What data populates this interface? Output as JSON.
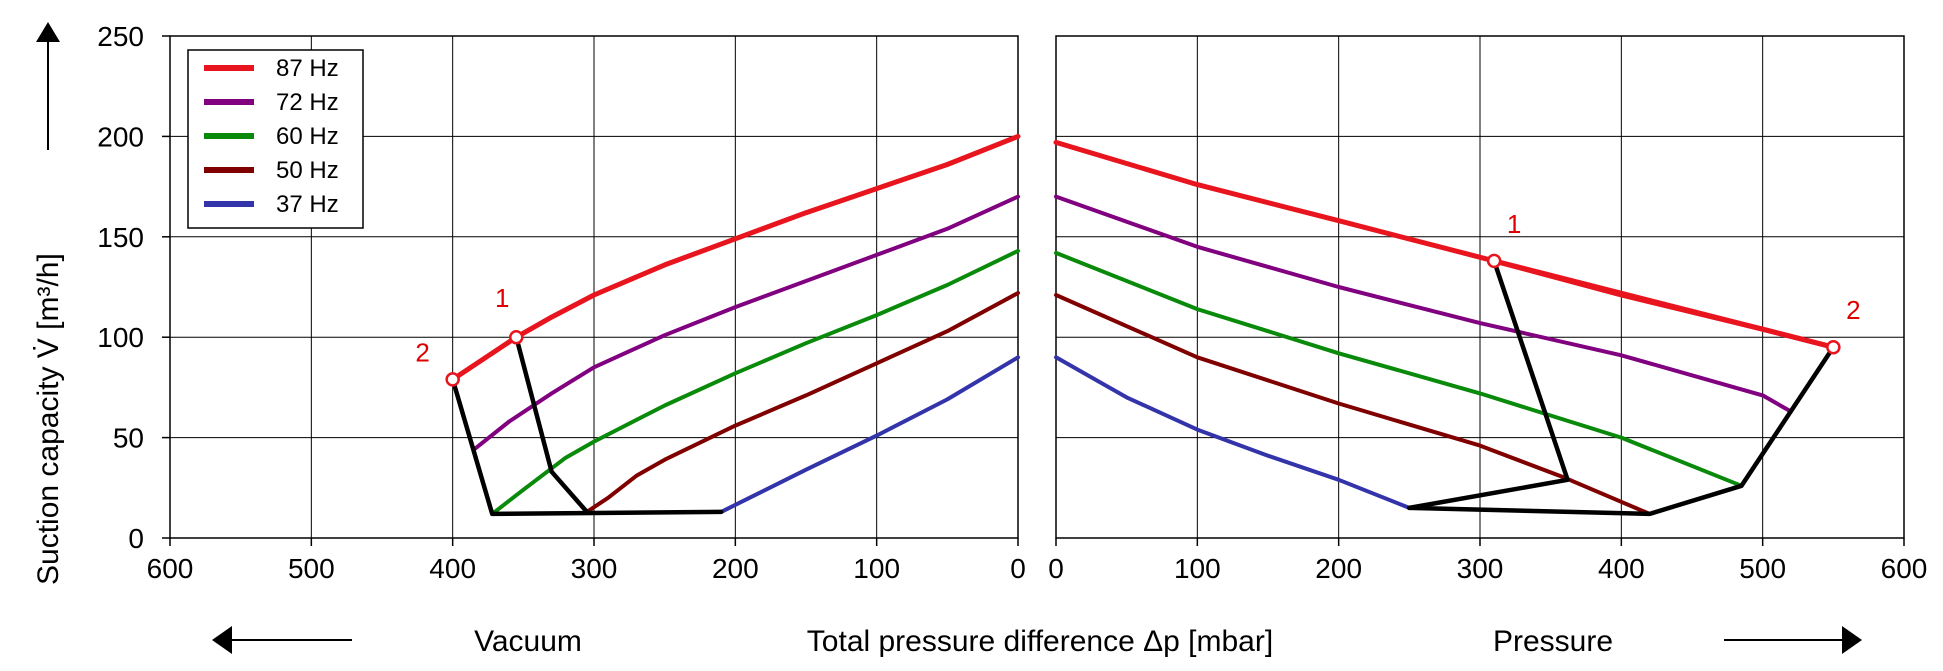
{
  "chart_data": {
    "type": "line",
    "xlabel": "Total pressure difference  Δp  [mbar]",
    "ylabel": "Suction capacity V̇     [m³/h]",
    "left_region_label": "Vacuum",
    "right_region_label": "Pressure",
    "ylim": [
      0,
      250
    ],
    "y_ticks": [
      "0",
      "50",
      "100",
      "150",
      "200",
      "250"
    ],
    "left_x_ticks": [
      "600",
      "500",
      "400",
      "300",
      "200",
      "100",
      "0"
    ],
    "right_x_ticks": [
      "0",
      "100",
      "200",
      "300",
      "400",
      "500",
      "600"
    ],
    "grid": true,
    "legend_position": "top-left",
    "panels": [
      {
        "name": "Vacuum",
        "xlim": [
          600,
          0
        ],
        "series": [
          {
            "name": "87 Hz",
            "color": "#e8141e",
            "points": [
              [
                355,
                100
              ],
              [
                330,
                110
              ],
              [
                300,
                121
              ],
              [
                250,
                136
              ],
              [
                200,
                149
              ],
              [
                150,
                162
              ],
              [
                100,
                174
              ],
              [
                50,
                186
              ],
              [
                0,
                200
              ]
            ]
          },
          {
            "name": "72 Hz",
            "color": "#800080",
            "points": [
              [
                385,
                44
              ],
              [
                360,
                58
              ],
              [
                330,
                72
              ],
              [
                300,
                85
              ],
              [
                250,
                101
              ],
              [
                200,
                115
              ],
              [
                150,
                128
              ],
              [
                100,
                141
              ],
              [
                50,
                154
              ],
              [
                0,
                170
              ]
            ]
          },
          {
            "name": "60 Hz",
            "color": "#0a8a0a",
            "points": [
              [
                372,
                12
              ],
              [
                350,
                24
              ],
              [
                320,
                40
              ],
              [
                300,
                48
              ],
              [
                250,
                66
              ],
              [
                200,
                82
              ],
              [
                150,
                97
              ],
              [
                100,
                111
              ],
              [
                50,
                126
              ],
              [
                0,
                143
              ]
            ]
          },
          {
            "name": "50 Hz",
            "color": "#800000",
            "points": [
              [
                305,
                13
              ],
              [
                290,
                20
              ],
              [
                270,
                31
              ],
              [
                250,
                39
              ],
              [
                200,
                56
              ],
              [
                150,
                71
              ],
              [
                100,
                87
              ],
              [
                50,
                103
              ],
              [
                0,
                122
              ]
            ]
          },
          {
            "name": "37 Hz",
            "color": "#3333aa",
            "points": [
              [
                210,
                13
              ],
              [
                190,
                20
              ],
              [
                150,
                34
              ],
              [
                100,
                51
              ],
              [
                50,
                69
              ],
              [
                0,
                90
              ]
            ]
          }
        ],
        "limit_lines": [
          [
            [
              400,
              79
            ],
            [
              372,
              12
            ],
            [
              210,
              13
            ]
          ],
          [
            [
              355,
              100
            ],
            [
              330,
              33
            ],
            [
              305,
              13
            ]
          ],
          [
            [
              400,
              79
            ],
            [
              355,
              100
            ]
          ]
        ],
        "markers": [
          {
            "label": "1",
            "x": 355,
            "y": 100
          },
          {
            "label": "2",
            "x": 400,
            "y": 79
          }
        ]
      },
      {
        "name": "Pressure",
        "xlim": [
          0,
          600
        ],
        "series": [
          {
            "name": "87 Hz",
            "color": "#e8141e",
            "points": [
              [
                0,
                197
              ],
              [
                100,
                176
              ],
              [
                200,
                158
              ],
              [
                310,
                138
              ],
              [
                400,
                121
              ],
              [
                500,
                104
              ],
              [
                550,
                95
              ]
            ]
          },
          {
            "name": "72 Hz",
            "color": "#800080",
            "points": [
              [
                0,
                170
              ],
              [
                100,
                145
              ],
              [
                200,
                125
              ],
              [
                300,
                107
              ],
              [
                400,
                91
              ],
              [
                500,
                71
              ],
              [
                520,
                63
              ]
            ]
          },
          {
            "name": "60 Hz",
            "color": "#0a8a0a",
            "points": [
              [
                0,
                142
              ],
              [
                100,
                114
              ],
              [
                200,
                92
              ],
              [
                300,
                72
              ],
              [
                400,
                50
              ],
              [
                485,
                26
              ]
            ]
          },
          {
            "name": "50 Hz",
            "color": "#800000",
            "points": [
              [
                0,
                121
              ],
              [
                100,
                90
              ],
              [
                200,
                67
              ],
              [
                300,
                46
              ],
              [
                360,
                30
              ],
              [
                420,
                12
              ]
            ]
          },
          {
            "name": "37 Hz",
            "color": "#3333aa",
            "points": [
              [
                0,
                90
              ],
              [
                50,
                70
              ],
              [
                100,
                54
              ],
              [
                150,
                41
              ],
              [
                200,
                29
              ],
              [
                250,
                15
              ]
            ]
          }
        ],
        "limit_lines": [
          [
            [
              310,
              138
            ],
            [
              362,
              29
            ],
            [
              250,
              15
            ]
          ],
          [
            [
              250,
              15
            ],
            [
              420,
              12
            ],
            [
              485,
              26
            ],
            [
              550,
              95
            ]
          ],
          [
            [
              310,
              138
            ],
            [
              550,
              95
            ]
          ]
        ],
        "markers": [
          {
            "label": "1",
            "x": 310,
            "y": 138
          },
          {
            "label": "2",
            "x": 550,
            "y": 95
          }
        ]
      }
    ]
  }
}
